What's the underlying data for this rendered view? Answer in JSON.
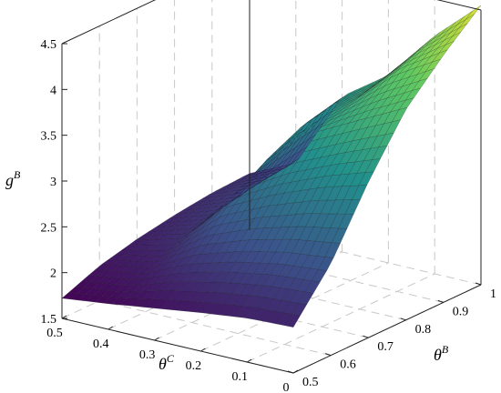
{
  "chart_data": {
    "type": "surface",
    "x_axis": {
      "label": "θ",
      "label_sup": "C",
      "range": [
        0,
        0.5
      ],
      "ticks": [
        "0",
        "0.1",
        "0.2",
        "0.3",
        "0.4",
        "0.5"
      ]
    },
    "y_axis": {
      "label": "θ",
      "label_sup": "B",
      "range": [
        0.5,
        1
      ],
      "ticks": [
        "0.5",
        "0.6",
        "0.7",
        "0.8",
        "0.9",
        "1"
      ]
    },
    "z_axis": {
      "label": "g",
      "label_sup": "B",
      "range": [
        1.5,
        4.5
      ],
      "ticks": [
        "1.5",
        "2",
        "2.5",
        "3",
        "3.5",
        "4",
        "4.5"
      ]
    },
    "grid": true,
    "colormap": "viridis",
    "surface_samples": {
      "theta_B": [
        0.5,
        0.6,
        0.7,
        0.8,
        0.9,
        1.0
      ],
      "rows": [
        {
          "theta_C": 0.5,
          "g": [
            1.72,
            1.88,
            1.98,
            2.05,
            2.1,
            2.12
          ]
        },
        {
          "theta_C": 0.4,
          "g": [
            1.78,
            1.95,
            2.12,
            2.22,
            2.3,
            2.35
          ]
        },
        {
          "theta_C": 0.3,
          "g": [
            1.85,
            2.2,
            2.6,
            2.9,
            3.1,
            3.2
          ]
        },
        {
          "theta_C": 0.2,
          "g": [
            1.92,
            2.35,
            2.85,
            3.3,
            3.45,
            3.55
          ]
        },
        {
          "theta_C": 0.1,
          "g": [
            1.98,
            2.45,
            3.05,
            3.55,
            3.9,
            4.1
          ]
        },
        {
          "theta_C": 0.0,
          "g": [
            2.0,
            2.5,
            3.2,
            3.8,
            4.2,
            4.55
          ]
        }
      ]
    }
  }
}
